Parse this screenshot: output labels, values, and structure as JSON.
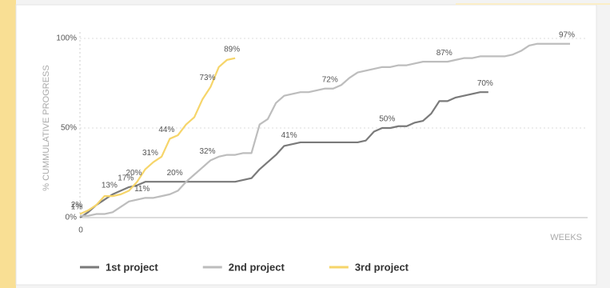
{
  "chart_data": {
    "type": "line",
    "y_label": "% CUMMULATIVE PROGRESS",
    "x_label": "WEEKS",
    "x_origin_label": "0",
    "x": [
      0,
      1,
      2,
      3,
      4,
      5,
      6,
      7,
      8,
      9,
      10,
      11,
      12,
      13,
      14,
      15,
      16,
      17,
      18,
      19,
      20,
      21,
      22,
      23,
      24,
      25,
      26,
      27,
      28,
      29,
      30,
      31,
      32,
      33,
      34,
      35,
      36,
      37,
      38,
      39,
      40,
      41,
      42,
      43,
      44,
      45,
      46,
      47,
      48,
      49,
      50,
      51,
      52,
      53,
      54,
      55,
      56,
      57,
      58,
      59,
      60
    ],
    "xlim": [
      0,
      60
    ],
    "ylim": [
      0,
      100
    ],
    "yticks": [
      {
        "value": 0,
        "label": "0%"
      },
      {
        "value": 50,
        "label": "50%"
      },
      {
        "value": 100,
        "label": "100%"
      }
    ],
    "grid": true,
    "legend": "bottom",
    "series": [
      {
        "name": "1st project",
        "color": "#7a7a7a",
        "values": [
          0,
          3,
          7,
          10,
          13,
          15,
          17,
          18,
          20,
          20,
          20,
          20,
          20,
          20,
          20,
          20,
          20,
          20,
          20,
          20,
          21,
          22,
          27,
          31,
          35,
          40,
          41,
          42,
          42,
          42,
          42,
          42,
          42,
          42,
          42,
          43,
          48,
          50,
          50,
          51,
          51,
          53,
          54,
          58,
          65,
          65,
          67,
          68,
          69,
          70,
          70,
          null,
          null,
          null,
          null,
          null,
          null,
          null,
          null,
          null,
          null
        ],
        "value_labels": [
          null,
          null,
          null,
          null,
          "13%",
          null,
          "17%",
          null,
          null,
          null,
          null,
          null,
          "20%",
          null,
          null,
          null,
          null,
          null,
          null,
          null,
          null,
          null,
          null,
          null,
          null,
          null,
          "41%",
          null,
          null,
          null,
          null,
          null,
          null,
          null,
          null,
          null,
          null,
          null,
          "50%",
          null,
          null,
          null,
          null,
          null,
          null,
          null,
          null,
          null,
          null,
          null,
          "70%",
          null,
          null,
          null,
          null,
          null,
          null,
          null,
          null,
          null,
          null
        ]
      },
      {
        "name": "2nd project",
        "color": "#bdbdbd",
        "values": [
          1,
          1,
          2,
          2,
          3,
          6,
          9,
          10,
          11,
          11,
          12,
          13,
          15,
          20,
          24,
          28,
          32,
          34,
          35,
          35,
          36,
          36,
          52,
          55,
          64,
          68,
          69,
          70,
          70,
          71,
          72,
          72,
          74,
          78,
          81,
          82,
          83,
          84,
          84,
          85,
          85,
          86,
          87,
          87,
          87,
          87,
          88,
          89,
          89,
          90,
          90,
          90,
          90,
          91,
          93,
          96,
          97,
          97,
          97,
          97,
          97
        ],
        "value_labels": [
          "1%",
          null,
          null,
          null,
          null,
          null,
          null,
          null,
          "11%",
          null,
          null,
          null,
          null,
          null,
          null,
          null,
          "32%",
          null,
          null,
          null,
          null,
          null,
          null,
          null,
          null,
          null,
          null,
          null,
          null,
          null,
          null,
          "72%",
          null,
          null,
          null,
          null,
          null,
          null,
          null,
          null,
          null,
          null,
          null,
          null,
          null,
          "87%",
          null,
          null,
          null,
          null,
          null,
          null,
          null,
          null,
          null,
          null,
          null,
          null,
          null,
          null,
          "97%"
        ]
      },
      {
        "name": "3rd project",
        "color": "#f6d56a",
        "values": [
          2,
          4,
          7,
          12,
          12,
          13,
          15,
          20,
          27,
          31,
          34,
          44,
          46,
          52,
          56,
          66,
          73,
          84,
          88,
          89,
          null,
          null,
          null,
          null,
          null,
          null,
          null,
          null,
          null,
          null,
          null,
          null,
          null,
          null,
          null,
          null,
          null,
          null,
          null,
          null,
          null,
          null,
          null,
          null,
          null,
          null,
          null,
          null,
          null,
          null,
          null,
          null,
          null,
          null,
          null,
          null,
          null,
          null,
          null,
          null,
          null
        ],
        "value_labels": [
          "2%",
          null,
          null,
          null,
          null,
          null,
          null,
          "20%",
          null,
          "31%",
          null,
          "44%",
          null,
          null,
          null,
          null,
          "73%",
          null,
          null,
          "89%",
          null,
          null,
          null,
          null,
          null,
          null,
          null,
          null,
          null,
          null,
          null,
          null,
          null,
          null,
          null,
          null,
          null,
          null,
          null,
          null,
          null,
          null,
          null,
          null,
          null,
          null,
          null,
          null,
          null,
          null,
          null,
          null,
          null,
          null,
          null,
          null,
          null,
          null,
          null,
          null,
          null
        ]
      }
    ]
  }
}
